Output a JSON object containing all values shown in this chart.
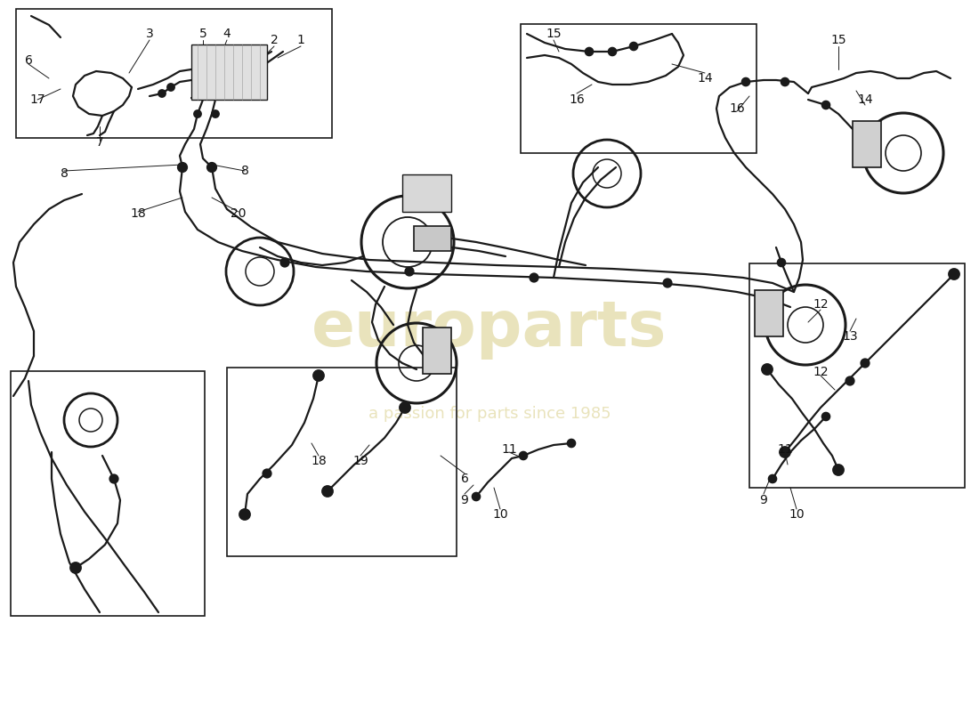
{
  "background_color": "#ffffff",
  "line_color": "#1a1a1a",
  "label_color": "#111111",
  "watermark_color": "#d4c87a",
  "watermark_text1": "europarts",
  "watermark_text2": "a passion for parts since 1985",
  "fig_width": 11.0,
  "fig_height": 8.0,
  "dpi": 100
}
